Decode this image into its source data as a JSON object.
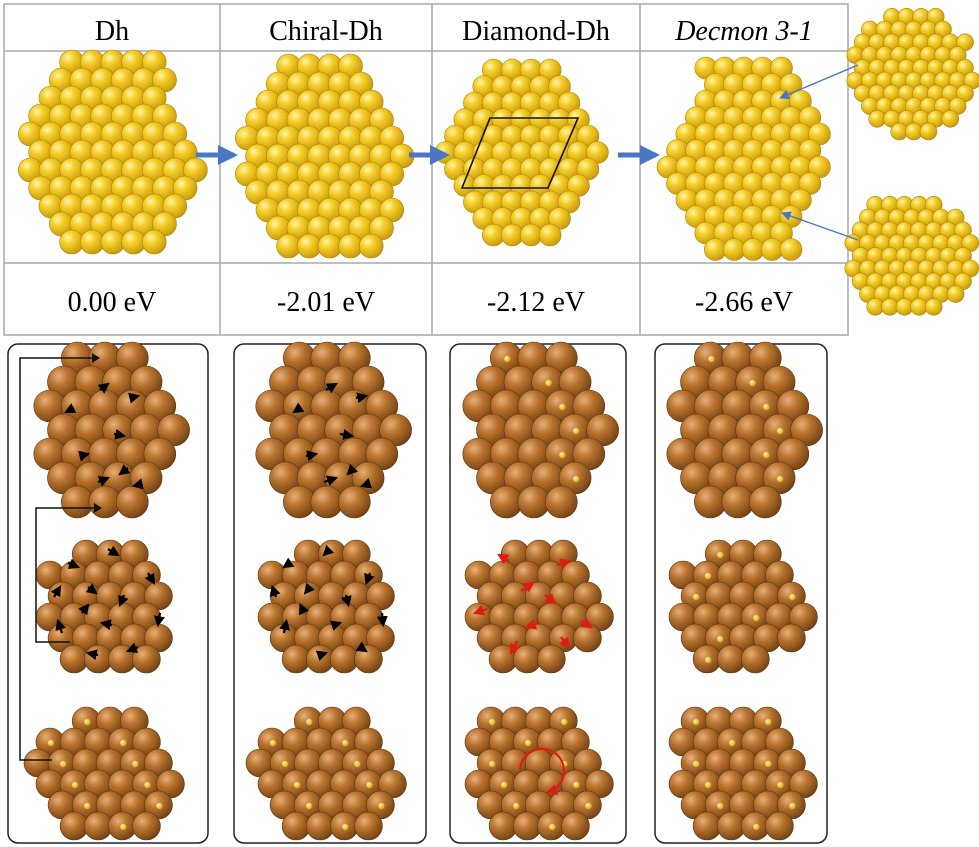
{
  "columns": [
    {
      "name": "Dh",
      "italic": false,
      "energy": "0.00 eV"
    },
    {
      "name": "Chiral-Dh",
      "italic": false,
      "energy": "-2.01 eV"
    },
    {
      "name": "Diamond-Dh",
      "italic": false,
      "energy": "-2.12 eV"
    },
    {
      "name": "Decmon 3-1",
      "italic": true,
      "energy": "-2.66 eV"
    }
  ],
  "colors": {
    "gold": "#f2c21a",
    "gold_dark": "#c99a08",
    "copper": "#b8732e",
    "copper_dark": "#7f4a18",
    "flow_arrow": "#4a76c2",
    "motion_arrow": "#000000",
    "rotation_arrow": "#e01c12"
  },
  "icons": {
    "cluster_top": "gold-sphere-cluster",
    "cluster_bottom": "copper-sphere-cluster",
    "transition": "blue-arrow-icon",
    "atom_motion": "black-arrow-icon",
    "rotation": "red-curved-arrow-icon"
  }
}
